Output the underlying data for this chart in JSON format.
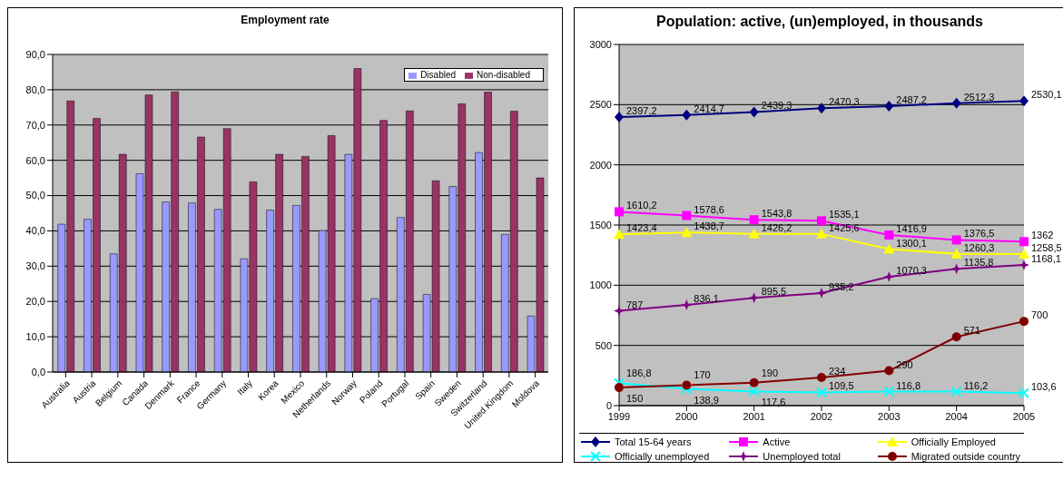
{
  "chart_data": [
    {
      "type": "bar",
      "title": "Employment rate",
      "categories": [
        "Australia",
        "Austria",
        "Belgium",
        "Canada",
        "Denmark",
        "France",
        "Germany",
        "Italy",
        "Korea",
        "Mexico",
        "Netherlands",
        "Norway",
        "Poland",
        "Portugal",
        "Spain",
        "Sweden",
        "Switzerland",
        "United Kingdom",
        "Moldova"
      ],
      "series": [
        {
          "name": "Disabled",
          "color": "#9999ff",
          "values": [
            41.9,
            43.3,
            33.5,
            56.2,
            48.2,
            47.9,
            46.1,
            32.1,
            45.9,
            47.2,
            40.1,
            61.7,
            20.8,
            43.8,
            22.0,
            52.6,
            62.2,
            39.0,
            15.9
          ]
        },
        {
          "name": "Non-disabled",
          "color": "#993366",
          "values": [
            76.8,
            71.9,
            61.7,
            78.5,
            79.4,
            66.6,
            69.0,
            53.9,
            61.7,
            61.1,
            67.0,
            86.0,
            71.3,
            74.0,
            54.2,
            76.0,
            79.3,
            73.9,
            55.0
          ]
        }
      ],
      "ylim": [
        0,
        90
      ],
      "yticks": [
        {
          "value": 0,
          "label": "0,0"
        },
        {
          "value": 10,
          "label": "10,0"
        },
        {
          "value": 20,
          "label": "20,0"
        },
        {
          "value": 30,
          "label": "30,0"
        },
        {
          "value": 40,
          "label": "40,0"
        },
        {
          "value": 50,
          "label": "50,0"
        },
        {
          "value": 60,
          "label": "60,0"
        },
        {
          "value": 70,
          "label": "70,0"
        },
        {
          "value": 80,
          "label": "80,0"
        },
        {
          "value": 90,
          "label": "90,0"
        }
      ],
      "grid": "y",
      "legend": "top right"
    },
    {
      "type": "line",
      "title": "Population: active, (un)employed, in thousands",
      "categories": [
        "1999",
        "2000",
        "2001",
        "2002",
        "2003",
        "2004",
        "2005"
      ],
      "series": [
        {
          "name": "Total 15-64 years",
          "color": "#000080",
          "marker": "diamond",
          "values": [
            2397.2,
            2414.7,
            2439.3,
            2470.3,
            2487.2,
            2512.3,
            2530.1
          ],
          "value_labels": [
            "2397,2",
            "2414,7",
            "2439,3",
            "2470,3",
            "2487,2",
            "2512,3",
            "2530,1"
          ]
        },
        {
          "name": "Active",
          "color": "#ff00ff",
          "marker": "square",
          "values": [
            1610.2,
            1578.6,
            1543.8,
            1535.1,
            1416.9,
            1376.5,
            1362
          ],
          "value_labels": [
            "1610,2",
            "1578,6",
            "1543,8",
            "1535,1",
            "1416,9",
            "1376,5",
            "1362"
          ]
        },
        {
          "name": "Officially Employed",
          "color": "#ffff00",
          "marker": "triangle",
          "values": [
            1423.4,
            1438.7,
            1426.2,
            1425.6,
            1300.1,
            1260.3,
            1258.5
          ],
          "value_labels": [
            "1423,4",
            "1438,7",
            "1426,2",
            "1425,6",
            "1300,1",
            "1260,3",
            "1258,5"
          ]
        },
        {
          "name": "Officially unemployed",
          "color": "#00ffff",
          "marker": "cross",
          "values": [
            186.8,
            138.9,
            117.6,
            109.5,
            116.8,
            116.2,
            103.6
          ],
          "value_labels": [
            "186,8",
            "138,9",
            "117,6",
            "109,5",
            "116,8",
            "116,2",
            "103,6"
          ]
        },
        {
          "name": "Unemployed total",
          "color": "#800080",
          "marker": "star",
          "values": [
            787,
            836.1,
            895.5,
            935.2,
            1070.3,
            1135.8,
            1168.1
          ],
          "value_labels": [
            "787",
            "836,1",
            "895,5",
            "935,2",
            "1070,3",
            "1135,8",
            "1168,1"
          ]
        },
        {
          "name": "Migrated outside country",
          "color": "#800000",
          "marker": "circle",
          "values": [
            150,
            170,
            190,
            234,
            290,
            571,
            700
          ],
          "value_labels": [
            "150",
            "170",
            "190",
            "234",
            "290",
            "571",
            "700"
          ]
        }
      ],
      "ylim": [
        0,
        3000
      ],
      "yticks": [
        0,
        500,
        1000,
        1500,
        2000,
        2500,
        3000
      ],
      "grid": "y",
      "legend": "bottom"
    }
  ]
}
